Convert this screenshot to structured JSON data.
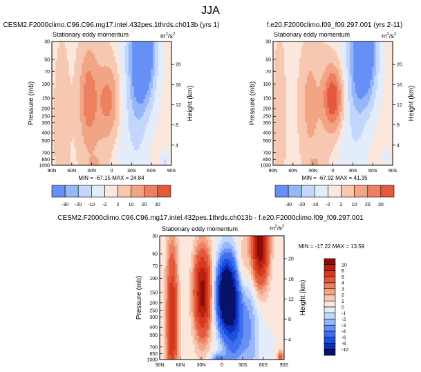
{
  "figure_title": "JJA",
  "colors": {
    "neg": [
      "#08126b",
      "#0c2fbf",
      "#1c4fe0",
      "#3d6ef0",
      "#6690f5",
      "#96b6fa",
      "#c3d6fb",
      "#e3ecfb"
    ],
    "pos": [
      "#fbe7dc",
      "#f7c8b1",
      "#f2a584",
      "#ec8060",
      "#e3593c",
      "#d53a21",
      "#bb1f10",
      "#8b0d05"
    ],
    "axis": "#000000",
    "label_box": "#000000"
  },
  "chart_data": [
    {
      "type": "contour",
      "title_left": "CESM2.F2000climo.C96.C96.mg17.intel.432pes.1thrds.ch013b (yrs 1)",
      "subtitle": "Stationary eddy momentum",
      "units": "m²/s²",
      "units_base": "m",
      "units_exp": "2",
      "units_den": "/s",
      "units_den_exp": "2",
      "ylabel": "Pressure (mb)",
      "ylabel_right": "Height (km)",
      "x_ticks": [
        "90N",
        "60N",
        "30N",
        "0",
        "30S",
        "60S",
        "90S"
      ],
      "x_range": [
        90,
        -90
      ],
      "y_ticks": [
        "30",
        "50",
        "70",
        "100",
        "150",
        "200",
        "250",
        "300",
        "400",
        "500",
        "700",
        "850",
        "1000"
      ],
      "y_values": [
        30,
        50,
        70,
        100,
        150,
        200,
        250,
        300,
        400,
        500,
        700,
        850,
        1000
      ],
      "y_range": [
        30,
        1000
      ],
      "height_ticks": [
        "20",
        "16",
        "12",
        "8",
        "4"
      ],
      "height_values": [
        20,
        16,
        12,
        8,
        4
      ],
      "stats": "MIN = -67.15   MAX = 24.84",
      "min": -67.15,
      "max": 24.84,
      "levels": [
        -30,
        -20,
        -10,
        -2,
        2,
        10,
        20,
        30
      ],
      "cbar_labels": [
        "-30",
        "-20",
        "-10",
        "-2",
        "2",
        "10",
        "20",
        "30"
      ],
      "features": [
        {
          "lat": 35,
          "p": 150,
          "amp": 24,
          "wlat": 9,
          "wz": 0.9
        },
        {
          "lat": 5,
          "p": 160,
          "amp": 22,
          "wlat": 11,
          "wz": 0.7
        },
        {
          "lat": 20,
          "p": 400,
          "amp": 6,
          "wlat": 18,
          "wz": 2.2
        },
        {
          "lat": 75,
          "p": 300,
          "amp": 4,
          "wlat": 10,
          "wz": 2.0
        },
        {
          "lat": -48,
          "p": 40,
          "amp": -55,
          "wlat": 12,
          "wz": 1.0
        },
        {
          "lat": -38,
          "p": 80,
          "amp": -14,
          "wlat": 10,
          "wz": 1.6
        },
        {
          "lat": -20,
          "p": 400,
          "amp": -5,
          "wlat": 20,
          "wz": 2.5
        },
        {
          "lat": -80,
          "p": 950,
          "amp": -12,
          "wlat": 4,
          "wz": 0.25
        },
        {
          "lat": 25,
          "p": 980,
          "amp": 8,
          "wlat": 6,
          "wz": 0.15
        }
      ]
    },
    {
      "type": "contour",
      "title_left": "f.e20.F2000climo.f09_f09.297.001 (yrs 2-11)",
      "subtitle": "Stationary eddy momentum",
      "units": "m²/s²",
      "units_base": "m",
      "units_exp": "2",
      "units_den": "/s",
      "units_den_exp": "2",
      "ylabel": "Pressure (mb)",
      "ylabel_right": "Height (km)",
      "x_ticks": [
        "90N",
        "60N",
        "30N",
        "0",
        "30S",
        "60S",
        "90S"
      ],
      "x_range": [
        90,
        -90
      ],
      "y_ticks": [
        "30",
        "50",
        "70",
        "100",
        "150",
        "200",
        "250",
        "300",
        "400",
        "500",
        "700",
        "850",
        "1000"
      ],
      "y_values": [
        30,
        50,
        70,
        100,
        150,
        200,
        250,
        300,
        400,
        500,
        700,
        850,
        1000
      ],
      "y_range": [
        30,
        1000
      ],
      "height_ticks": [
        "20",
        "16",
        "12",
        "8",
        "4"
      ],
      "height_values": [
        20,
        16,
        12,
        8,
        4
      ],
      "stats": "MIN = -67.92   MAX = 41.35",
      "min": -67.92,
      "max": 41.35,
      "levels": [
        -30,
        -20,
        -10,
        -2,
        2,
        10,
        20,
        30
      ],
      "cbar_labels": [
        "-30",
        "-20",
        "-10",
        "-2",
        "2",
        "10",
        "20",
        "30"
      ],
      "features": [
        {
          "lat": 35,
          "p": 170,
          "amp": 12,
          "wlat": 9,
          "wz": 1.0
        },
        {
          "lat": 0,
          "p": 150,
          "amp": 40,
          "wlat": 10,
          "wz": 0.6
        },
        {
          "lat": 15,
          "p": 400,
          "amp": 5,
          "wlat": 18,
          "wz": 2.0
        },
        {
          "lat": 80,
          "p": 250,
          "amp": 4,
          "wlat": 8,
          "wz": 2.0
        },
        {
          "lat": -48,
          "p": 40,
          "amp": -55,
          "wlat": 12,
          "wz": 1.0
        },
        {
          "lat": -35,
          "p": 80,
          "amp": -12,
          "wlat": 10,
          "wz": 1.6
        },
        {
          "lat": -15,
          "p": 350,
          "amp": -5,
          "wlat": 18,
          "wz": 2.5
        },
        {
          "lat": -80,
          "p": 950,
          "amp": -10,
          "wlat": 4,
          "wz": 0.25
        },
        {
          "lat": 28,
          "p": 980,
          "amp": 9,
          "wlat": 6,
          "wz": 0.15
        }
      ]
    },
    {
      "type": "contour",
      "title_left": "CESM2.F2000climo.C96.C96.mg17.intel.432pes.1thrds.ch013b - f.e20.F2000climo.f09_f09.297.001",
      "subtitle": "Stationary eddy momentum",
      "units": "m²/s²",
      "units_base": "m",
      "units_exp": "2",
      "units_den": "/s",
      "units_den_exp": "2",
      "ylabel": "Pressure (mb)",
      "ylabel_right": "Height (km)",
      "x_ticks": [
        "90N",
        "60N",
        "30N",
        "0",
        "30S",
        "60S",
        "90S"
      ],
      "x_range": [
        90,
        -90
      ],
      "y_ticks": [
        "30",
        "50",
        "70",
        "100",
        "150",
        "200",
        "250",
        "300",
        "400",
        "500",
        "700",
        "850",
        "1000"
      ],
      "y_values": [
        30,
        50,
        70,
        100,
        150,
        200,
        250,
        300,
        400,
        500,
        700,
        850,
        1000
      ],
      "y_range": [
        30,
        1000
      ],
      "height_ticks": [
        "20",
        "16",
        "12",
        "8",
        "4"
      ],
      "height_values": [
        20,
        16,
        12,
        8,
        4
      ],
      "stats": "MIN = -17.22   MAX = 13.59",
      "min": -17.22,
      "max": 13.59,
      "levels": [
        -10,
        -8,
        -6,
        -4,
        -3,
        -2,
        -1,
        0,
        1,
        2,
        3,
        4,
        6,
        8,
        10
      ],
      "cbar_labels": [
        "10",
        "8",
        "6",
        "4",
        "3",
        "2",
        "1",
        "0",
        "-1",
        "-2",
        "-3",
        "-4",
        "-6",
        "-8",
        "-10"
      ],
      "features": [
        {
          "lat": 28,
          "p": 150,
          "amp": 11,
          "wlat": 9,
          "wz": 0.9
        },
        {
          "lat": 72,
          "p": 320,
          "amp": 8,
          "wlat": 6,
          "wz": 1.6
        },
        {
          "lat": -5,
          "p": 160,
          "amp": -15,
          "wlat": 9,
          "wz": 0.7
        },
        {
          "lat": -18,
          "p": 250,
          "amp": -7,
          "wlat": 9,
          "wz": 1.0
        },
        {
          "lat": -55,
          "p": 40,
          "amp": 12,
          "wlat": 9,
          "wz": 0.8
        },
        {
          "lat": -30,
          "p": 70,
          "amp": 3,
          "wlat": 8,
          "wz": 0.7
        },
        {
          "lat": -40,
          "p": 350,
          "amp": -3,
          "wlat": 10,
          "wz": 1.5
        },
        {
          "lat": -85,
          "p": 980,
          "amp": 6,
          "wlat": 3,
          "wz": 0.15
        },
        {
          "lat": 5,
          "p": 980,
          "amp": -4,
          "wlat": 8,
          "wz": 0.12
        }
      ]
    }
  ]
}
